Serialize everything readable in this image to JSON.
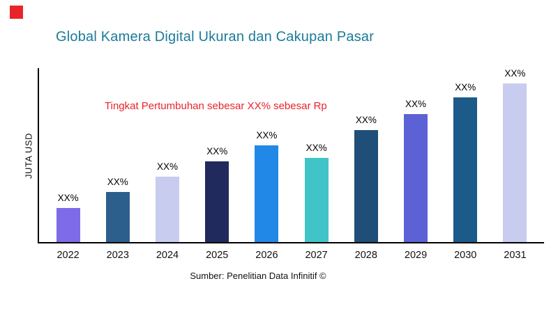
{
  "accent": {
    "square_color": "#E8242B"
  },
  "title": "Global Kamera Digital Ukuran dan Cakupan Pasar",
  "title_color": "#1B7A99",
  "annotation": {
    "text": "Tingkat Pertumbuhan sebesar XX% sebesar Rp",
    "color": "#E8242B"
  },
  "source": "Sumber: Penelitian Data Infinitif ©",
  "chart_data": {
    "type": "bar",
    "title": "Global Kamera Digital Ukuran dan Cakupan Pasar",
    "xlabel": "",
    "ylabel": "JUTA USD",
    "categories": [
      "2022",
      "2023",
      "2024",
      "2025",
      "2026",
      "2027",
      "2028",
      "2029",
      "2030",
      "2031"
    ],
    "values": [
      49,
      72,
      94,
      116,
      139,
      121,
      161,
      184,
      208,
      231
    ],
    "value_labels": [
      "XX%",
      "XX%",
      "XX%",
      "XX%",
      "XX%",
      "XX%",
      "XX%",
      "XX%",
      "XX%",
      "XX%"
    ],
    "bar_colors": [
      "#7D6BE8",
      "#2D5F8D",
      "#C8CCEE",
      "#202A5C",
      "#2188E8",
      "#40C4C8",
      "#1F4E79",
      "#5C62D6",
      "#1C5A8A",
      "#C8CCEE"
    ],
    "ylim": [
      0,
      250
    ],
    "grid": false,
    "legend": false,
    "values_note": "Relative units estimated from bar heights; actual values not shown (labels are XX% placeholders)"
  }
}
